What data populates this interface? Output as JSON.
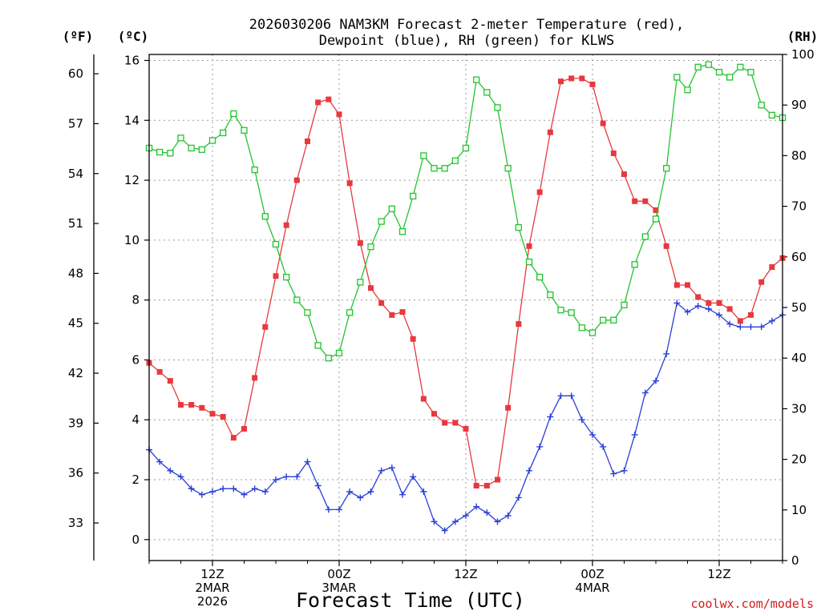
{
  "title": {
    "line1": "2026030206 NAM3KM Forecast 2-meter Temperature (red),",
    "line2": "Dewpoint (blue), RH (green) for KLWS"
  },
  "credit": "coolwx.com/models",
  "chart_data": {
    "type": "line",
    "xlabel": "Forecast Time (UTC)",
    "x_start": "2026-03-02 06Z",
    "x_step_hours": 1,
    "x_range_hours": [
      0,
      60
    ],
    "x_ticks": [
      {
        "hour": 6,
        "lines": [
          "12Z",
          "2MAR",
          "2026"
        ]
      },
      {
        "hour": 18,
        "lines": [
          "00Z",
          "3MAR"
        ]
      },
      {
        "hour": 30,
        "lines": [
          "12Z"
        ]
      },
      {
        "hour": 42,
        "lines": [
          "00Z",
          "4MAR"
        ]
      },
      {
        "hour": 54,
        "lines": [
          "12Z"
        ]
      }
    ],
    "axes": {
      "fahrenheit": {
        "label": "(ºF)",
        "ticks": [
          33,
          36,
          39,
          42,
          45,
          48,
          51,
          54,
          57,
          60
        ]
      },
      "celsius": {
        "label": "(ºC)",
        "range": [
          -0.7,
          16.2
        ],
        "ticks": [
          0,
          2,
          4,
          6,
          8,
          10,
          12,
          14,
          16
        ]
      },
      "rh": {
        "label": "(RH)",
        "range": [
          0,
          100
        ],
        "ticks": [
          0,
          10,
          20,
          30,
          40,
          50,
          60,
          70,
          80,
          90,
          100
        ]
      }
    },
    "grid": true,
    "series": [
      {
        "name": "Temperature",
        "unit": "C",
        "color": "#e8383d",
        "marker": "filled-square",
        "values": [
          5.9,
          5.6,
          5.3,
          4.5,
          4.5,
          4.4,
          4.2,
          4.1,
          3.4,
          3.7,
          5.4,
          7.1,
          8.8,
          10.5,
          12.0,
          13.3,
          14.6,
          14.7,
          14.2,
          11.9,
          9.9,
          8.4,
          7.9,
          7.5,
          7.6,
          6.7,
          4.7,
          4.2,
          3.9,
          3.9,
          3.7,
          1.8,
          1.8,
          2.0,
          4.4,
          7.2,
          9.8,
          11.6,
          13.6,
          15.3,
          15.4,
          15.4,
          15.2,
          13.9,
          12.9,
          12.2,
          11.3,
          11.3,
          11.0,
          9.8,
          8.5,
          8.5,
          8.1,
          7.9,
          7.9,
          7.7,
          7.3,
          7.5,
          8.6,
          9.1,
          9.4
        ]
      },
      {
        "name": "Dewpoint",
        "unit": "C",
        "color": "#2a3fd9",
        "marker": "plus",
        "values": [
          3.0,
          2.6,
          2.3,
          2.1,
          1.7,
          1.5,
          1.6,
          1.7,
          1.7,
          1.5,
          1.7,
          1.6,
          2.0,
          2.1,
          2.1,
          2.6,
          1.8,
          1.0,
          1.0,
          1.6,
          1.4,
          1.6,
          2.3,
          2.4,
          1.5,
          2.1,
          1.6,
          0.6,
          0.3,
          0.6,
          0.8,
          1.1,
          0.9,
          0.6,
          0.8,
          1.4,
          2.3,
          3.1,
          4.1,
          4.8,
          4.8,
          4.0,
          3.5,
          3.1,
          2.2,
          2.3,
          3.5,
          4.9,
          5.3,
          6.2,
          7.9,
          7.6,
          7.8,
          7.7,
          7.5,
          7.2,
          7.1,
          7.1,
          7.1,
          7.3,
          7.5
        ]
      },
      {
        "name": "RH",
        "unit": "%",
        "color": "#22c42e",
        "marker": "open-square",
        "values": [
          81.5,
          80.7,
          80.5,
          83.5,
          81.5,
          81.2,
          83.0,
          84.5,
          88.3,
          85.0,
          77.2,
          68.0,
          62.5,
          56.0,
          51.5,
          49.0,
          42.5,
          40.0,
          41.0,
          49.0,
          55.0,
          62.0,
          67.0,
          69.5,
          65.0,
          72.0,
          80.0,
          77.5,
          77.5,
          79.0,
          81.5,
          95.0,
          92.5,
          89.5,
          77.5,
          65.8,
          59.0,
          56.0,
          52.5,
          49.5,
          49.0,
          46.0,
          45.0,
          47.5,
          47.5,
          50.5,
          58.5,
          64.0,
          67.5,
          77.5,
          95.5,
          93.0,
          97.5,
          98.0,
          96.5,
          95.5,
          97.5,
          96.5,
          90.0,
          88.0,
          87.5
        ]
      }
    ]
  }
}
